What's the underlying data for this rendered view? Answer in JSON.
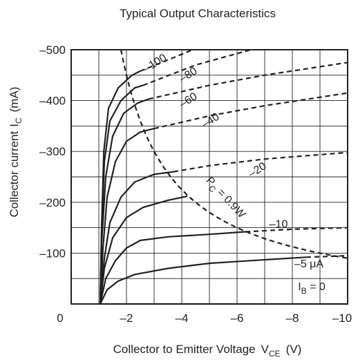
{
  "chart_data": {
    "type": "line",
    "title": "Typical Output Characteristics",
    "xlabel": "Collector to Emitter Voltage",
    "xlabel_symbol": "V",
    "xlabel_sub": "CE",
    "xlabel_unit": "(V)",
    "ylabel": "Collector current",
    "ylabel_symbol": "I",
    "ylabel_sub": "C",
    "ylabel_unit": "(mA)",
    "xlim": [
      0,
      -10
    ],
    "ylim": [
      0,
      -500
    ],
    "grid": true,
    "x_ticks": [
      {
        "value": 0,
        "label": "0"
      },
      {
        "value": -2,
        "label": "–2"
      },
      {
        "value": -4,
        "label": "–4"
      },
      {
        "value": -6,
        "label": "–6"
      },
      {
        "value": -8,
        "label": "–8"
      },
      {
        "value": -10,
        "label": "–10"
      }
    ],
    "y_ticks": [
      {
        "value": -100,
        "label": "–100"
      },
      {
        "value": -200,
        "label": "–200"
      },
      {
        "value": -300,
        "label": "–300"
      },
      {
        "value": -400,
        "label": "–400"
      },
      {
        "value": -500,
        "label": "–500"
      }
    ],
    "series": [
      {
        "label": "–5 μA",
        "points": [
          [
            -1.05,
            0
          ],
          [
            -1.3,
            -28
          ],
          [
            -1.7,
            -45
          ],
          [
            -2.3,
            -58
          ],
          [
            -3.5,
            -70
          ],
          [
            -5,
            -80
          ],
          [
            -7,
            -87
          ],
          [
            -8.5,
            -92
          ],
          [
            -10,
            -95
          ]
        ],
        "safe_until": -8.5
      },
      {
        "label": "–10",
        "points": [
          [
            -1.05,
            0
          ],
          [
            -1.25,
            -50
          ],
          [
            -1.6,
            -85
          ],
          [
            -2,
            -110
          ],
          [
            -2.5,
            -125
          ],
          [
            -3.5,
            -132
          ],
          [
            -5,
            -137
          ],
          [
            -6.3,
            -142
          ],
          [
            -8,
            -147
          ],
          [
            -10,
            -150
          ]
        ],
        "safe_until": -6.3
      },
      {
        "label": "",
        "points": [
          [
            -1.05,
            0
          ],
          [
            -1.2,
            -70
          ],
          [
            -1.5,
            -130
          ],
          [
            -2,
            -170
          ],
          [
            -2.6,
            -190
          ],
          [
            -3.5,
            -204
          ],
          [
            -4.2,
            -212
          ]
        ],
        "safe_until": -4.2
      },
      {
        "label": "–20",
        "points": [
          [
            -1.05,
            0
          ],
          [
            -1.2,
            -90
          ],
          [
            -1.4,
            -160
          ],
          [
            -1.8,
            -210
          ],
          [
            -2.3,
            -240
          ],
          [
            -3,
            -255
          ],
          [
            -3.7,
            -260
          ],
          [
            -5,
            -272
          ],
          [
            -7,
            -285
          ],
          [
            -10,
            -298
          ]
        ],
        "safe_until": -3.7
      },
      {
        "label": "–40",
        "points": [
          [
            -1.05,
            0
          ],
          [
            -1.15,
            -110
          ],
          [
            -1.3,
            -210
          ],
          [
            -1.6,
            -280
          ],
          [
            -2,
            -320
          ],
          [
            -2.5,
            -338
          ],
          [
            -3,
            -345
          ],
          [
            -5,
            -370
          ],
          [
            -7,
            -390
          ],
          [
            -10,
            -415
          ]
        ],
        "safe_until": -3.0
      },
      {
        "label": "–60",
        "points": [
          [
            -1.05,
            0
          ],
          [
            -1.1,
            -120
          ],
          [
            -1.25,
            -250
          ],
          [
            -1.5,
            -330
          ],
          [
            -1.9,
            -375
          ],
          [
            -2.4,
            -395
          ],
          [
            -2.8,
            -403
          ],
          [
            -5,
            -430
          ],
          [
            -7,
            -450
          ],
          [
            -10,
            -475
          ]
        ],
        "safe_until": -2.8
      },
      {
        "label": "–80",
        "points": [
          [
            -1.05,
            0
          ],
          [
            -1.1,
            -140
          ],
          [
            -1.2,
            -280
          ],
          [
            -1.4,
            -360
          ],
          [
            -1.8,
            -400
          ],
          [
            -2.3,
            -425
          ],
          [
            -2.6,
            -430
          ],
          [
            -4.5,
            -470
          ],
          [
            -6.5,
            -500
          ]
        ],
        "safe_until": -2.6
      },
      {
        "label": "–100",
        "points": [
          [
            -1.05,
            0
          ],
          [
            -1.1,
            -150
          ],
          [
            -1.18,
            -300
          ],
          [
            -1.35,
            -385
          ],
          [
            -1.7,
            -425
          ],
          [
            -2.2,
            -450
          ],
          [
            -2.5,
            -458
          ],
          [
            -3.5,
            -480
          ],
          [
            -4.4,
            -500
          ]
        ],
        "safe_until": -2.5
      },
      {
        "label": "I_B = 0",
        "points": [
          [
            -1.05,
            0
          ],
          [
            -10,
            0
          ]
        ],
        "safe_until": -10
      }
    ],
    "annotations": [
      {
        "text": "–100",
        "x": -3.1,
        "y": -468
      },
      {
        "text": "–80",
        "x": -4.3,
        "y": -445
      },
      {
        "text": "–60",
        "x": -4.3,
        "y": -395
      },
      {
        "text": "–40",
        "x": -5.1,
        "y": -355
      },
      {
        "text": "–20",
        "x": -6.8,
        "y": -258
      },
      {
        "text": "–10",
        "x": -7.5,
        "y": -150
      },
      {
        "text": "–5 μA",
        "x": -8.6,
        "y": -72
      },
      {
        "text": "I_B = 0",
        "x": -8.7,
        "y": -27
      }
    ],
    "power_limit": {
      "label": "P_C = 0.9W",
      "watts": 0.9
    }
  }
}
